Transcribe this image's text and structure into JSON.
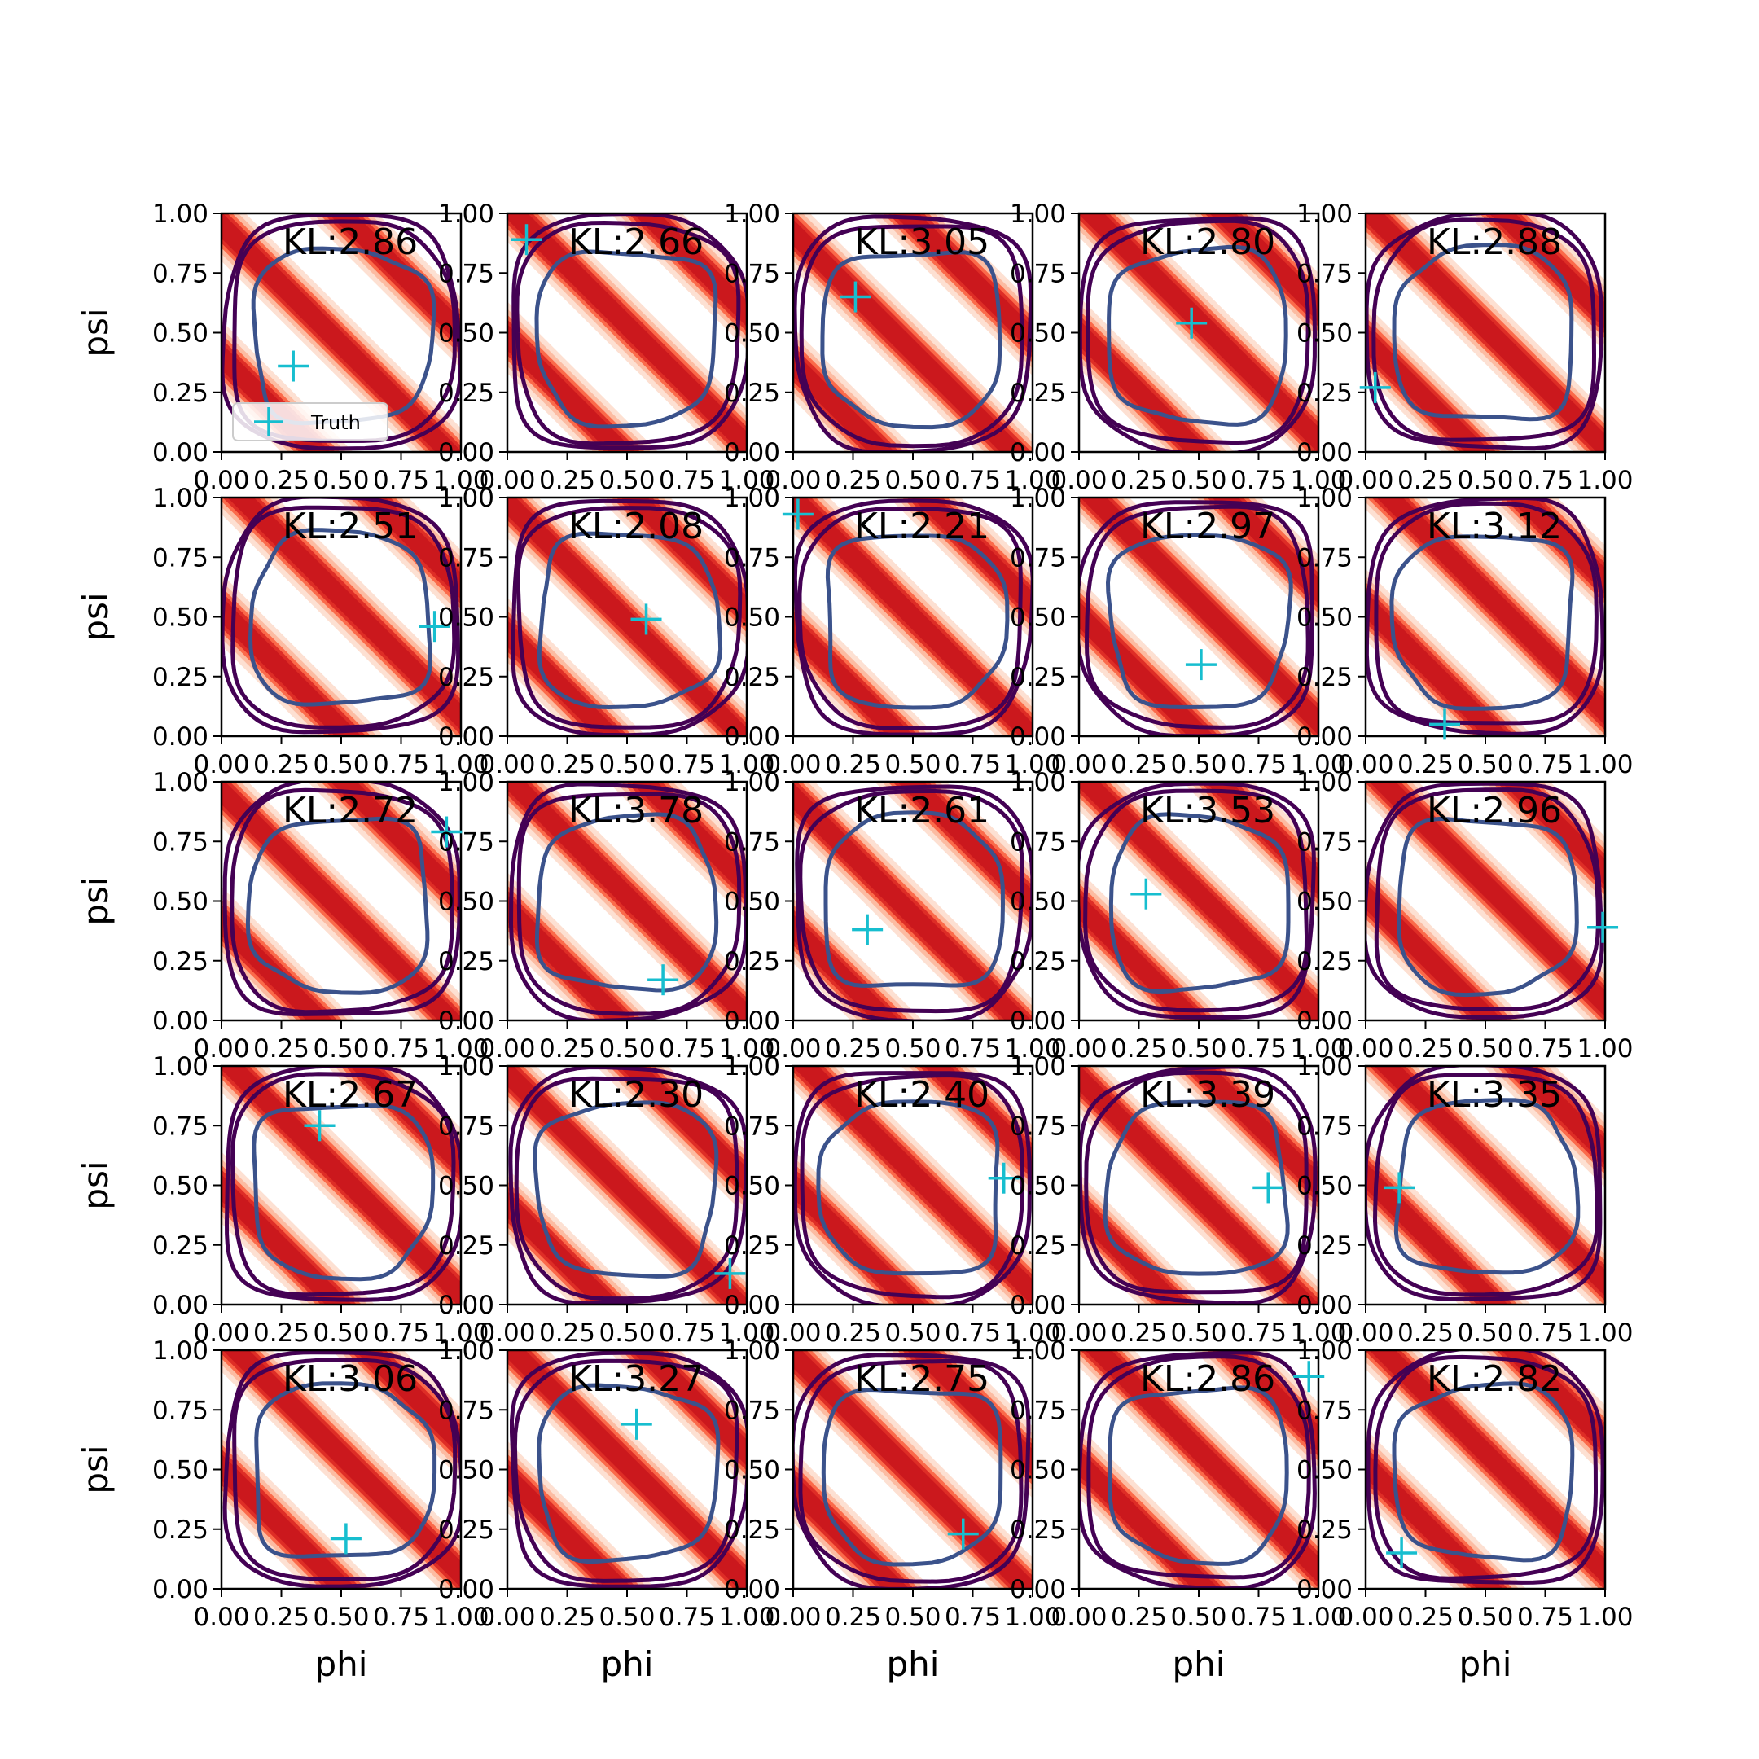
{
  "chart_data": {
    "type": "contour-grid",
    "rows": 5,
    "cols": 5,
    "xlabel": "phi",
    "ylabel": "psi",
    "xlim": [
      0,
      1
    ],
    "ylim": [
      0,
      1
    ],
    "ticks": [
      "0.00",
      "0.25",
      "0.50",
      "0.75",
      "1.00"
    ],
    "legend": {
      "label": "Truth",
      "placement": "lower-left",
      "panel": 0
    },
    "colors": {
      "density": [
        "#fde0d2",
        "#fcbba1",
        "#fb6a4a",
        "#de2d26",
        "#cb181d"
      ],
      "contour_outer": "#440154",
      "contour_inner": "#3b528b",
      "truth": "#17becf"
    },
    "panels": [
      {
        "kl": "KL:2.86",
        "truth": [
          0.3,
          0.36
        ],
        "band_offset": -0.05
      },
      {
        "kl": "KL:2.66",
        "truth": [
          0.08,
          0.89
        ],
        "band_offset": 0.03
      },
      {
        "kl": "KL:3.05",
        "truth": [
          0.26,
          0.65
        ],
        "band_offset": -0.08
      },
      {
        "kl": "KL:2.80",
        "truth": [
          0.47,
          0.54
        ],
        "band_offset": 0.05
      },
      {
        "kl": "KL:2.88",
        "truth": [
          0.04,
          0.27
        ],
        "band_offset": 0.02
      },
      {
        "kl": "KL:2.51",
        "truth": [
          0.89,
          0.46
        ],
        "band_offset": 0.08
      },
      {
        "kl": "KL:2.08",
        "truth": [
          0.58,
          0.49
        ],
        "band_offset": -0.02
      },
      {
        "kl": "KL:2.21",
        "truth": [
          0.02,
          0.93
        ],
        "band_offset": 0.0
      },
      {
        "kl": "KL:2.97",
        "truth": [
          0.51,
          0.3
        ],
        "band_offset": 0.06
      },
      {
        "kl": "KL:3.12",
        "truth": [
          0.33,
          0.05
        ],
        "band_offset": 0.1
      },
      {
        "kl": "KL:2.72",
        "truth": [
          0.94,
          0.79
        ],
        "band_offset": -0.04
      },
      {
        "kl": "KL:3.78",
        "truth": [
          0.65,
          0.17
        ],
        "band_offset": 0.02
      },
      {
        "kl": "KL:2.61",
        "truth": [
          0.31,
          0.38
        ],
        "band_offset": -0.06
      },
      {
        "kl": "KL:3.53",
        "truth": [
          0.28,
          0.53
        ],
        "band_offset": 0.03
      },
      {
        "kl": "KL:2.96",
        "truth": [
          0.99,
          0.39
        ],
        "band_offset": 0.07
      },
      {
        "kl": "KL:2.67",
        "truth": [
          0.41,
          0.75
        ],
        "band_offset": 0.04
      },
      {
        "kl": "KL:2.30",
        "truth": [
          0.93,
          0.13
        ],
        "band_offset": -0.03
      },
      {
        "kl": "KL:2.40",
        "truth": [
          0.88,
          0.53
        ],
        "band_offset": 0.05
      },
      {
        "kl": "KL:3.39",
        "truth": [
          0.79,
          0.49
        ],
        "band_offset": -0.05
      },
      {
        "kl": "KL:3.35",
        "truth": [
          0.14,
          0.49
        ],
        "band_offset": 0.09
      },
      {
        "kl": "KL:3.06",
        "truth": [
          0.52,
          0.21
        ],
        "band_offset": 0.06
      },
      {
        "kl": "KL:3.27",
        "truth": [
          0.54,
          0.69
        ],
        "band_offset": 0.02
      },
      {
        "kl": "KL:2.75",
        "truth": [
          0.71,
          0.23
        ],
        "band_offset": -0.02
      },
      {
        "kl": "KL:2.86",
        "truth": [
          0.96,
          0.89
        ],
        "band_offset": 0.08
      },
      {
        "kl": "KL:2.82",
        "truth": [
          0.15,
          0.15
        ],
        "band_offset": 0.07
      }
    ]
  }
}
